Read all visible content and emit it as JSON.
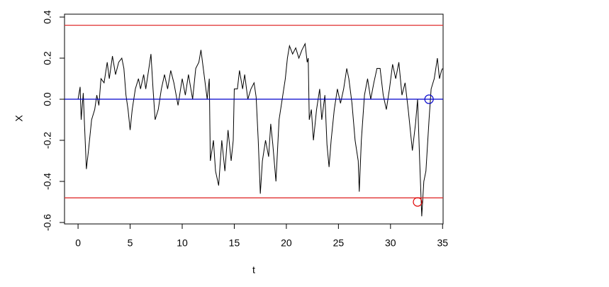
{
  "chart_data": {
    "type": "line",
    "x_label": "t",
    "y_label": "X",
    "xlim": [
      -1.3,
      35.05
    ],
    "ylim": [
      -0.607,
      0.414
    ],
    "xticks": [
      0,
      5,
      10,
      15,
      20,
      25,
      30,
      35
    ],
    "yticks": [
      -0.6,
      -0.4,
      -0.2,
      {
        "value": 0,
        "label": "0.0"
      },
      0.2,
      0.4
    ],
    "color": "#000000",
    "x": [
      0,
      0.2,
      0.3,
      0.5,
      0.6,
      0.8,
      1.0,
      1.3,
      1.6,
      1.8,
      2.0,
      2.2,
      2.5,
      2.8,
      3.0,
      3.3,
      3.6,
      3.9,
      4.2,
      4.4,
      4.6,
      4.8,
      5.0,
      5.2,
      5.5,
      5.8,
      6.0,
      6.3,
      6.5,
      6.8,
      7.0,
      7.2,
      7.4,
      7.7,
      8.0,
      8.3,
      8.6,
      8.9,
      9.2,
      9.6,
      10,
      10.3,
      10.6,
      11,
      11.3,
      11.6,
      11.8,
      12.0,
      12.2,
      12.4,
      12.6,
      12.7,
      13,
      13.2,
      13.5,
      13.8,
      14.1,
      14.4,
      14.7,
      14.9,
      15.0,
      15.3,
      15.5,
      15.8,
      16.0,
      16.3,
      16.6,
      16.9,
      17.1,
      17.3,
      17.5,
      17.7,
      18.0,
      18.3,
      18.5,
      18.7,
      19.0,
      19.3,
      19.6,
      19.9,
      20.1,
      20.3,
      20.6,
      20.9,
      21.2,
      21.5,
      21.8,
      22.0,
      22.1,
      22.2,
      22.4,
      22.6,
      22.9,
      23.2,
      23.4,
      23.7,
      23.9,
      24.1,
      24.3,
      24.6,
      24.9,
      25.2,
      25.5,
      25.8,
      26.0,
      26.3,
      26.6,
      26.9,
      27.0,
      27.2,
      27.5,
      27.8,
      28.1,
      28.4,
      28.7,
      29.0,
      29.3,
      29.6,
      29.9,
      30.2,
      30.5,
      30.8,
      31.1,
      31.4,
      31.7,
      31.9,
      32.1,
      32.4,
      32.6,
      32.8,
      33.0,
      33.2,
      33.4,
      33.7,
      33.9,
      34.2,
      34.5,
      34.7,
      34.9,
      35.0
    ],
    "values": [
      0,
      0.06,
      -0.1,
      0.03,
      -0.1,
      -0.34,
      -0.25,
      -0.1,
      -0.05,
      0.02,
      -0.03,
      0.1,
      0.08,
      0.18,
      0.1,
      0.21,
      0.12,
      0.18,
      0.2,
      0.15,
      0.02,
      -0.05,
      -0.15,
      -0.05,
      0.05,
      0.1,
      0.05,
      0.12,
      0.05,
      0.15,
      0.22,
      0.05,
      -0.1,
      -0.05,
      0.05,
      0.12,
      0.05,
      0.14,
      0.08,
      -0.03,
      0.1,
      0.02,
      0.12,
      0.0,
      0.15,
      0.18,
      0.24,
      0.16,
      0.08,
      0.0,
      0.1,
      -0.3,
      -0.2,
      -0.35,
      -0.42,
      -0.2,
      -0.35,
      -0.15,
      -0.3,
      -0.2,
      0.05,
      0.05,
      0.14,
      0.05,
      0.12,
      0.0,
      0.05,
      0.08,
      0.01,
      -0.2,
      -0.46,
      -0.3,
      -0.2,
      -0.28,
      -0.12,
      -0.22,
      -0.4,
      -0.1,
      0.0,
      0.1,
      0.2,
      0.26,
      0.22,
      0.25,
      0.2,
      0.24,
      0.27,
      0.18,
      0.2,
      -0.1,
      -0.05,
      -0.2,
      -0.05,
      0.05,
      -0.1,
      0.02,
      -0.22,
      -0.33,
      -0.2,
      -0.05,
      0.05,
      -0.02,
      0.05,
      0.15,
      0.1,
      -0.02,
      -0.2,
      -0.3,
      -0.45,
      -0.2,
      0.02,
      0.1,
      0.0,
      0.08,
      0.15,
      0.15,
      0.02,
      -0.05,
      0.05,
      0.17,
      0.1,
      0.18,
      0.02,
      0.08,
      -0.05,
      -0.15,
      -0.25,
      -0.12,
      0.0,
      -0.3,
      -0.57,
      -0.4,
      -0.35,
      -0.1,
      0.05,
      0.1,
      0.2,
      0.1,
      0.14,
      0.15
    ],
    "hlines": [
      {
        "y": 0.36,
        "color": "#e03030"
      },
      {
        "y": -0.48,
        "color": "#e03030"
      },
      {
        "y": 0,
        "color": "#0000cc"
      }
    ],
    "markers": [
      {
        "x": 32.6,
        "y": -0.5,
        "color": "#e00000"
      },
      {
        "x": 33.7,
        "y": 0,
        "color": "#0000cc"
      }
    ]
  }
}
